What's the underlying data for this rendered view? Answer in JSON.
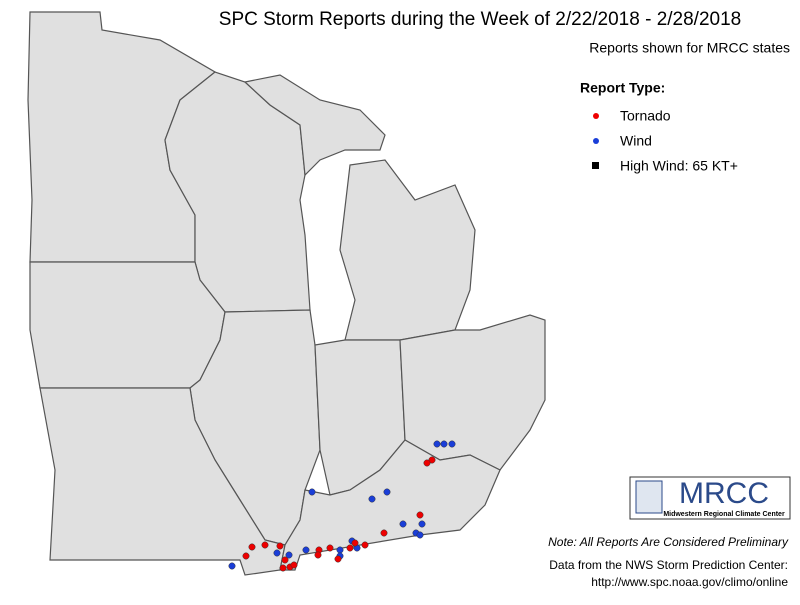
{
  "header": {
    "title": "SPC Storm Reports during the Week of 2/22/2018 - 2/28/2018",
    "subtitle": "Reports shown for MRCC states"
  },
  "legend": {
    "title": "Report Type:",
    "items": [
      "Tornado",
      "Wind",
      "High Wind: 65 KT+"
    ]
  },
  "logo": {
    "name": "MRCC",
    "full_name": "Midwestern Regional Climate Center"
  },
  "footer": {
    "note": "Note: All Reports Are Considered Preliminary",
    "source": "Data from the NWS Storm Prediction Center:",
    "url": "http://www.spc.noaa.gov/climo/online"
  }
}
